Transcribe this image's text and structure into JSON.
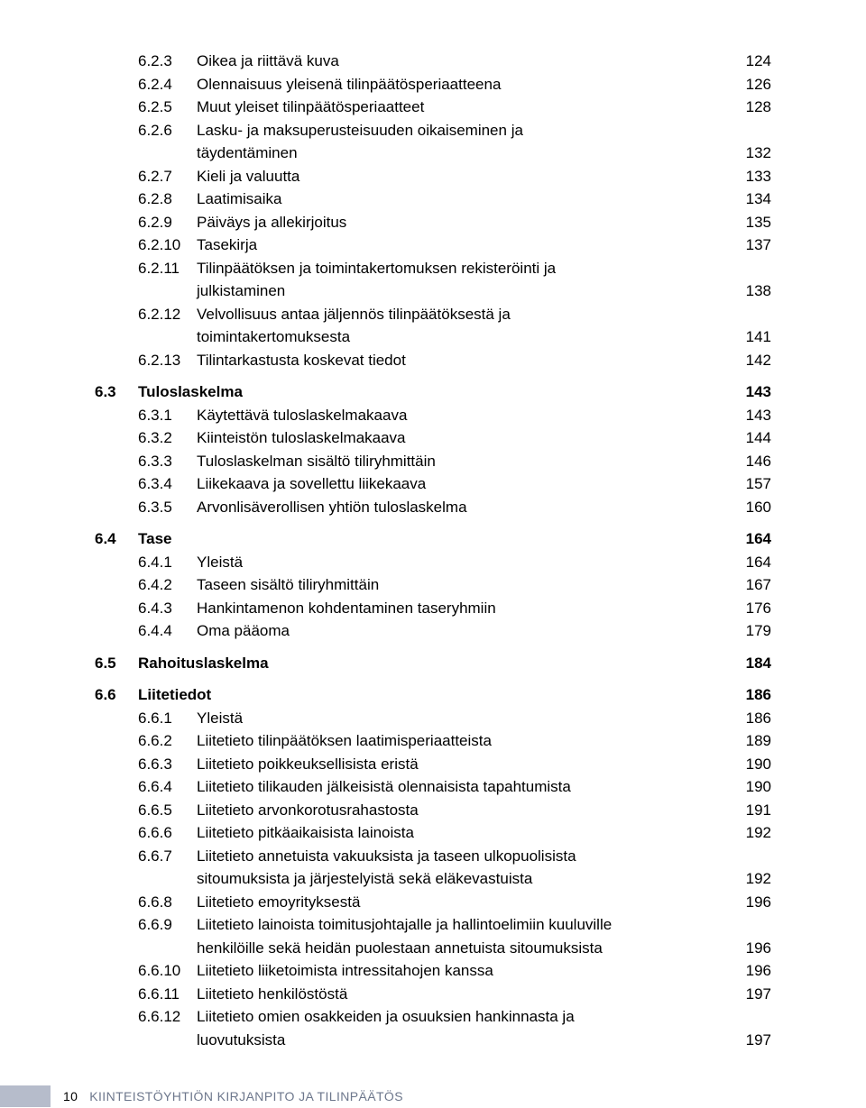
{
  "toc": [
    {
      "type": "sub",
      "num": "6.2.3",
      "title": "Oikea ja riittävä kuva",
      "page": "124"
    },
    {
      "type": "sub",
      "num": "6.2.4",
      "title": "Olennaisuus yleisenä tilinpäätösperiaatteena",
      "page": "126"
    },
    {
      "type": "sub",
      "num": "6.2.5",
      "title": "Muut yleiset tilinpäätösperiaatteet",
      "page": "128"
    },
    {
      "type": "sub",
      "num": "6.2.6",
      "title": "Lasku- ja maksuperusteisuuden oikaiseminen ja",
      "cont": [
        {
          "title": "täydentäminen",
          "page": "132"
        }
      ]
    },
    {
      "type": "sub",
      "num": "6.2.7",
      "title": "Kieli ja valuutta",
      "page": "133"
    },
    {
      "type": "sub",
      "num": "6.2.8",
      "title": "Laatimisaika",
      "page": "134"
    },
    {
      "type": "sub",
      "num": "6.2.9",
      "title": "Päiväys ja allekirjoitus",
      "page": "135"
    },
    {
      "type": "sub",
      "num": "6.2.10",
      "title": "Tasekirja",
      "page": "137"
    },
    {
      "type": "sub",
      "num": "6.2.11",
      "title": "Tilinpäätöksen ja toimintakertomuksen rekisteröinti ja",
      "cont": [
        {
          "title": "julkistaminen",
          "page": "138"
        }
      ]
    },
    {
      "type": "sub",
      "num": "6.2.12",
      "title": "Velvollisuus antaa jäljennös tilinpäätöksestä ja",
      "cont": [
        {
          "title": "toimintakertomuksesta",
          "page": "141"
        }
      ]
    },
    {
      "type": "sub",
      "num": "6.2.13",
      "title": "Tilintarkastusta koskevat tiedot",
      "page": "142"
    },
    {
      "type": "section",
      "num": "6.3",
      "title": "Tuloslaskelma",
      "page": "143"
    },
    {
      "type": "sub",
      "num": "6.3.1",
      "title": "Käytettävä tuloslaskelmakaava",
      "page": "143"
    },
    {
      "type": "sub",
      "num": "6.3.2",
      "title": "Kiinteistön tuloslaskelmakaava",
      "page": "144"
    },
    {
      "type": "sub",
      "num": "6.3.3",
      "title": "Tuloslaskelman sisältö tiliryhmittäin",
      "page": "146"
    },
    {
      "type": "sub",
      "num": "6.3.4",
      "title": "Liikekaava ja sovellettu liikekaava",
      "page": "157"
    },
    {
      "type": "sub",
      "num": "6.3.5",
      "title": "Arvonlisäverollisen yhtiön tuloslaskelma",
      "page": "160"
    },
    {
      "type": "section",
      "num": "6.4",
      "title": "Tase",
      "page": "164"
    },
    {
      "type": "sub",
      "num": "6.4.1",
      "title": "Yleistä",
      "page": "164"
    },
    {
      "type": "sub",
      "num": "6.4.2",
      "title": "Taseen sisältö tiliryhmittäin",
      "page": "167"
    },
    {
      "type": "sub",
      "num": "6.4.3",
      "title": "Hankintamenon kohdentaminen taseryhmiin",
      "page": "176"
    },
    {
      "type": "sub",
      "num": "6.4.4",
      "title": "Oma pääoma",
      "page": "179"
    },
    {
      "type": "section",
      "num": "6.5",
      "title": "Rahoituslaskelma",
      "page": "184"
    },
    {
      "type": "section",
      "num": "6.6",
      "title": "Liitetiedot",
      "page": "186"
    },
    {
      "type": "sub",
      "num": "6.6.1",
      "title": "Yleistä",
      "page": "186"
    },
    {
      "type": "sub",
      "num": "6.6.2",
      "title": "Liitetieto tilinpäätöksen laatimisperiaatteista",
      "page": "189"
    },
    {
      "type": "sub",
      "num": "6.6.3",
      "title": "Liitetieto poikkeuksellisista eristä",
      "page": "190"
    },
    {
      "type": "sub",
      "num": "6.6.4",
      "title": "Liitetieto tilikauden jälkeisistä olennaisista tapahtumista",
      "page": "190"
    },
    {
      "type": "sub",
      "num": "6.6.5",
      "title": "Liitetieto arvonkorotusrahastosta",
      "page": "191"
    },
    {
      "type": "sub",
      "num": "6.6.6",
      "title": "Liitetieto pitkäaikaisista lainoista",
      "page": "192"
    },
    {
      "type": "sub",
      "num": "6.6.7",
      "title": "Liitetieto annetuista vakuuksista ja taseen ulkopuolisista",
      "cont": [
        {
          "title": "sitoumuksista ja järjestelyistä sekä eläkevastuista",
          "page": "192"
        }
      ]
    },
    {
      "type": "sub",
      "num": "6.6.8",
      "title": "Liitetieto emoyrityksestä",
      "page": "196"
    },
    {
      "type": "sub",
      "num": "6.6.9",
      "title": "Liitetieto lainoista toimitusjohtajalle ja hallintoelimiin kuuluville",
      "cont": [
        {
          "title": "henkilöille sekä heidän puolestaan annetuista sitoumuksista",
          "page": "196"
        }
      ]
    },
    {
      "type": "sub",
      "num": "6.6.10",
      "title": "Liitetieto liiketoimista intressitahojen kanssa",
      "page": "196"
    },
    {
      "type": "sub",
      "num": "6.6.11",
      "title": "Liitetieto henkilöstöstä",
      "page": "197"
    },
    {
      "type": "sub",
      "num": "6.6.12",
      "title": "Liitetieto omien osakkeiden ja osuuksien hankinnasta ja",
      "cont": [
        {
          "title": "luovutuksista",
          "page": "197"
        }
      ]
    }
  ],
  "footer": {
    "page_number": "10",
    "title": "KIINTEISTÖYHTIÖN KIRJANPITO JA TILINPÄÄTÖS"
  }
}
